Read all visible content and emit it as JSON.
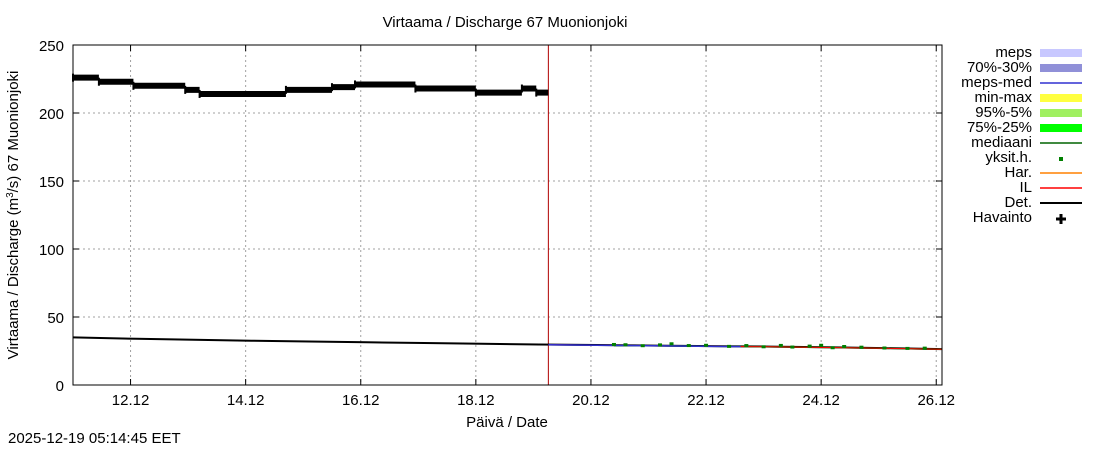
{
  "timestamp": "2025-12-19 05:14:45 EET",
  "colors": {
    "observed": "#000000",
    "det": "#000000",
    "il": "#ff0000",
    "har": "#ff8000",
    "yksit": "#008000",
    "mediaani": "#006400",
    "p75_25": "#00ff00",
    "p95_5": "#a0f060",
    "minmax": "#ffff40",
    "meps_med": "#3030d0",
    "p70_30": "#9090d8",
    "meps": "#c8c8ff",
    "now_line": "#b00000",
    "grid": "#a0a0a0"
  },
  "chart_data": {
    "type": "line",
    "title": "Virtaama / Discharge  67 Muonionjoki",
    "xlabel": "Päivä / Date",
    "ylabel_parts": {
      "pre": "Virtaama / Discharge (m",
      "sup": "3",
      "post": "/s)  67 Muonionjoki"
    },
    "xlim": [
      10.9,
      26.0
    ],
    "ylim": [
      0,
      250
    ],
    "x_tick_values": [
      11.9,
      13.9,
      15.9,
      17.9,
      19.9,
      21.9,
      23.9,
      25.9
    ],
    "x_tick_labels": [
      "12.12",
      "14.12",
      "16.12",
      "18.12",
      "20.12",
      "22.12",
      "24.12",
      "26.12"
    ],
    "y_ticks": [
      0,
      50,
      100,
      150,
      200,
      250
    ],
    "now_x": 19.16,
    "grid": true,
    "legend": [
      {
        "label": "meps",
        "key": "meps",
        "style": "band"
      },
      {
        "label": "70%-30%",
        "key": "p70_30",
        "style": "band"
      },
      {
        "label": "meps-med",
        "key": "meps_med",
        "style": "line"
      },
      {
        "label": "min-max",
        "key": "minmax",
        "style": "band"
      },
      {
        "label": "95%-5%",
        "key": "p95_5",
        "style": "band"
      },
      {
        "label": "75%-25%",
        "key": "p75_25",
        "style": "band"
      },
      {
        "label": "mediaani",
        "key": "mediaani",
        "style": "line"
      },
      {
        "label": "yksit.h.",
        "key": "yksit",
        "style": "dot"
      },
      {
        "label": "Har.",
        "key": "har",
        "style": "line"
      },
      {
        "label": "IL",
        "key": "il",
        "style": "line"
      },
      {
        "label": "Det.",
        "key": "det",
        "style": "line"
      },
      {
        "label": "Havainto",
        "key": "observed",
        "style": "cross"
      }
    ],
    "series": {
      "observed": {
        "name": "Havainto",
        "segments": [
          {
            "x": [
              10.9,
              11.35
            ],
            "y": 226
          },
          {
            "x": [
              11.35,
              11.95
            ],
            "y": 223
          },
          {
            "x": [
              11.95,
              12.85
            ],
            "y": 220
          },
          {
            "x": [
              12.85,
              13.1
            ],
            "y": 217
          },
          {
            "x": [
              13.1,
              14.6
            ],
            "y": 214
          },
          {
            "x": [
              14.6,
              15.4
            ],
            "y": 217
          },
          {
            "x": [
              15.4,
              15.8
            ],
            "y": 219
          },
          {
            "x": [
              15.8,
              16.85
            ],
            "y": 221
          },
          {
            "x": [
              16.85,
              17.9
            ],
            "y": 218
          },
          {
            "x": [
              17.9,
              18.7
            ],
            "y": 215
          },
          {
            "x": [
              18.7,
              18.95
            ],
            "y": 218
          },
          {
            "x": [
              18.95,
              19.16
            ],
            "y": 215
          }
        ]
      },
      "det": {
        "name": "Det.",
        "x": [
          10.9,
          12.0,
          13.0,
          14.0,
          15.0,
          16.0,
          17.0,
          18.0,
          19.0,
          20.0,
          21.0,
          22.0,
          23.0,
          24.0,
          25.0,
          26.0
        ],
        "y": [
          35,
          34,
          33.3,
          32.6,
          32,
          31.4,
          30.9,
          30.3,
          29.8,
          29.4,
          29,
          28.6,
          28.2,
          27.7,
          27.1,
          26.4
        ]
      },
      "il": {
        "name": "IL",
        "x": [
          19.16,
          20.0,
          21.0,
          22.0,
          23.0,
          24.0,
          25.0,
          26.0
        ],
        "y": [
          29.7,
          29.3,
          28.9,
          28.5,
          28.1,
          27.6,
          27.0,
          26.3
        ]
      },
      "meps_med": {
        "name": "meps-med",
        "x": [
          19.16,
          20.0,
          21.0,
          22.0,
          22.5
        ],
        "y": [
          29.6,
          29.2,
          28.8,
          28.4,
          28.2
        ]
      },
      "mediaani": {
        "name": "mediaani",
        "x": [
          20.3,
          21.0,
          22.0,
          23.0,
          24.0,
          25.0,
          26.0
        ],
        "y": [
          29.0,
          28.8,
          28.5,
          28.1,
          27.6,
          27.0,
          26.3
        ]
      },
      "yksit": {
        "name": "yksit.h.",
        "x": [
          20.3,
          20.5,
          20.8,
          21.1,
          21.3,
          21.6,
          21.9,
          22.3,
          22.6,
          22.9,
          23.2,
          23.4,
          23.7,
          23.9,
          24.1,
          24.3,
          24.6,
          25.0,
          25.4,
          25.7
        ],
        "y": [
          29.8,
          29.6,
          28.9,
          29.5,
          30.3,
          29.0,
          29.2,
          28.4,
          29.0,
          28.1,
          29.1,
          27.9,
          28.6,
          29.2,
          27.4,
          28.3,
          27.8,
          27.2,
          26.9,
          27.1
        ]
      }
    }
  }
}
